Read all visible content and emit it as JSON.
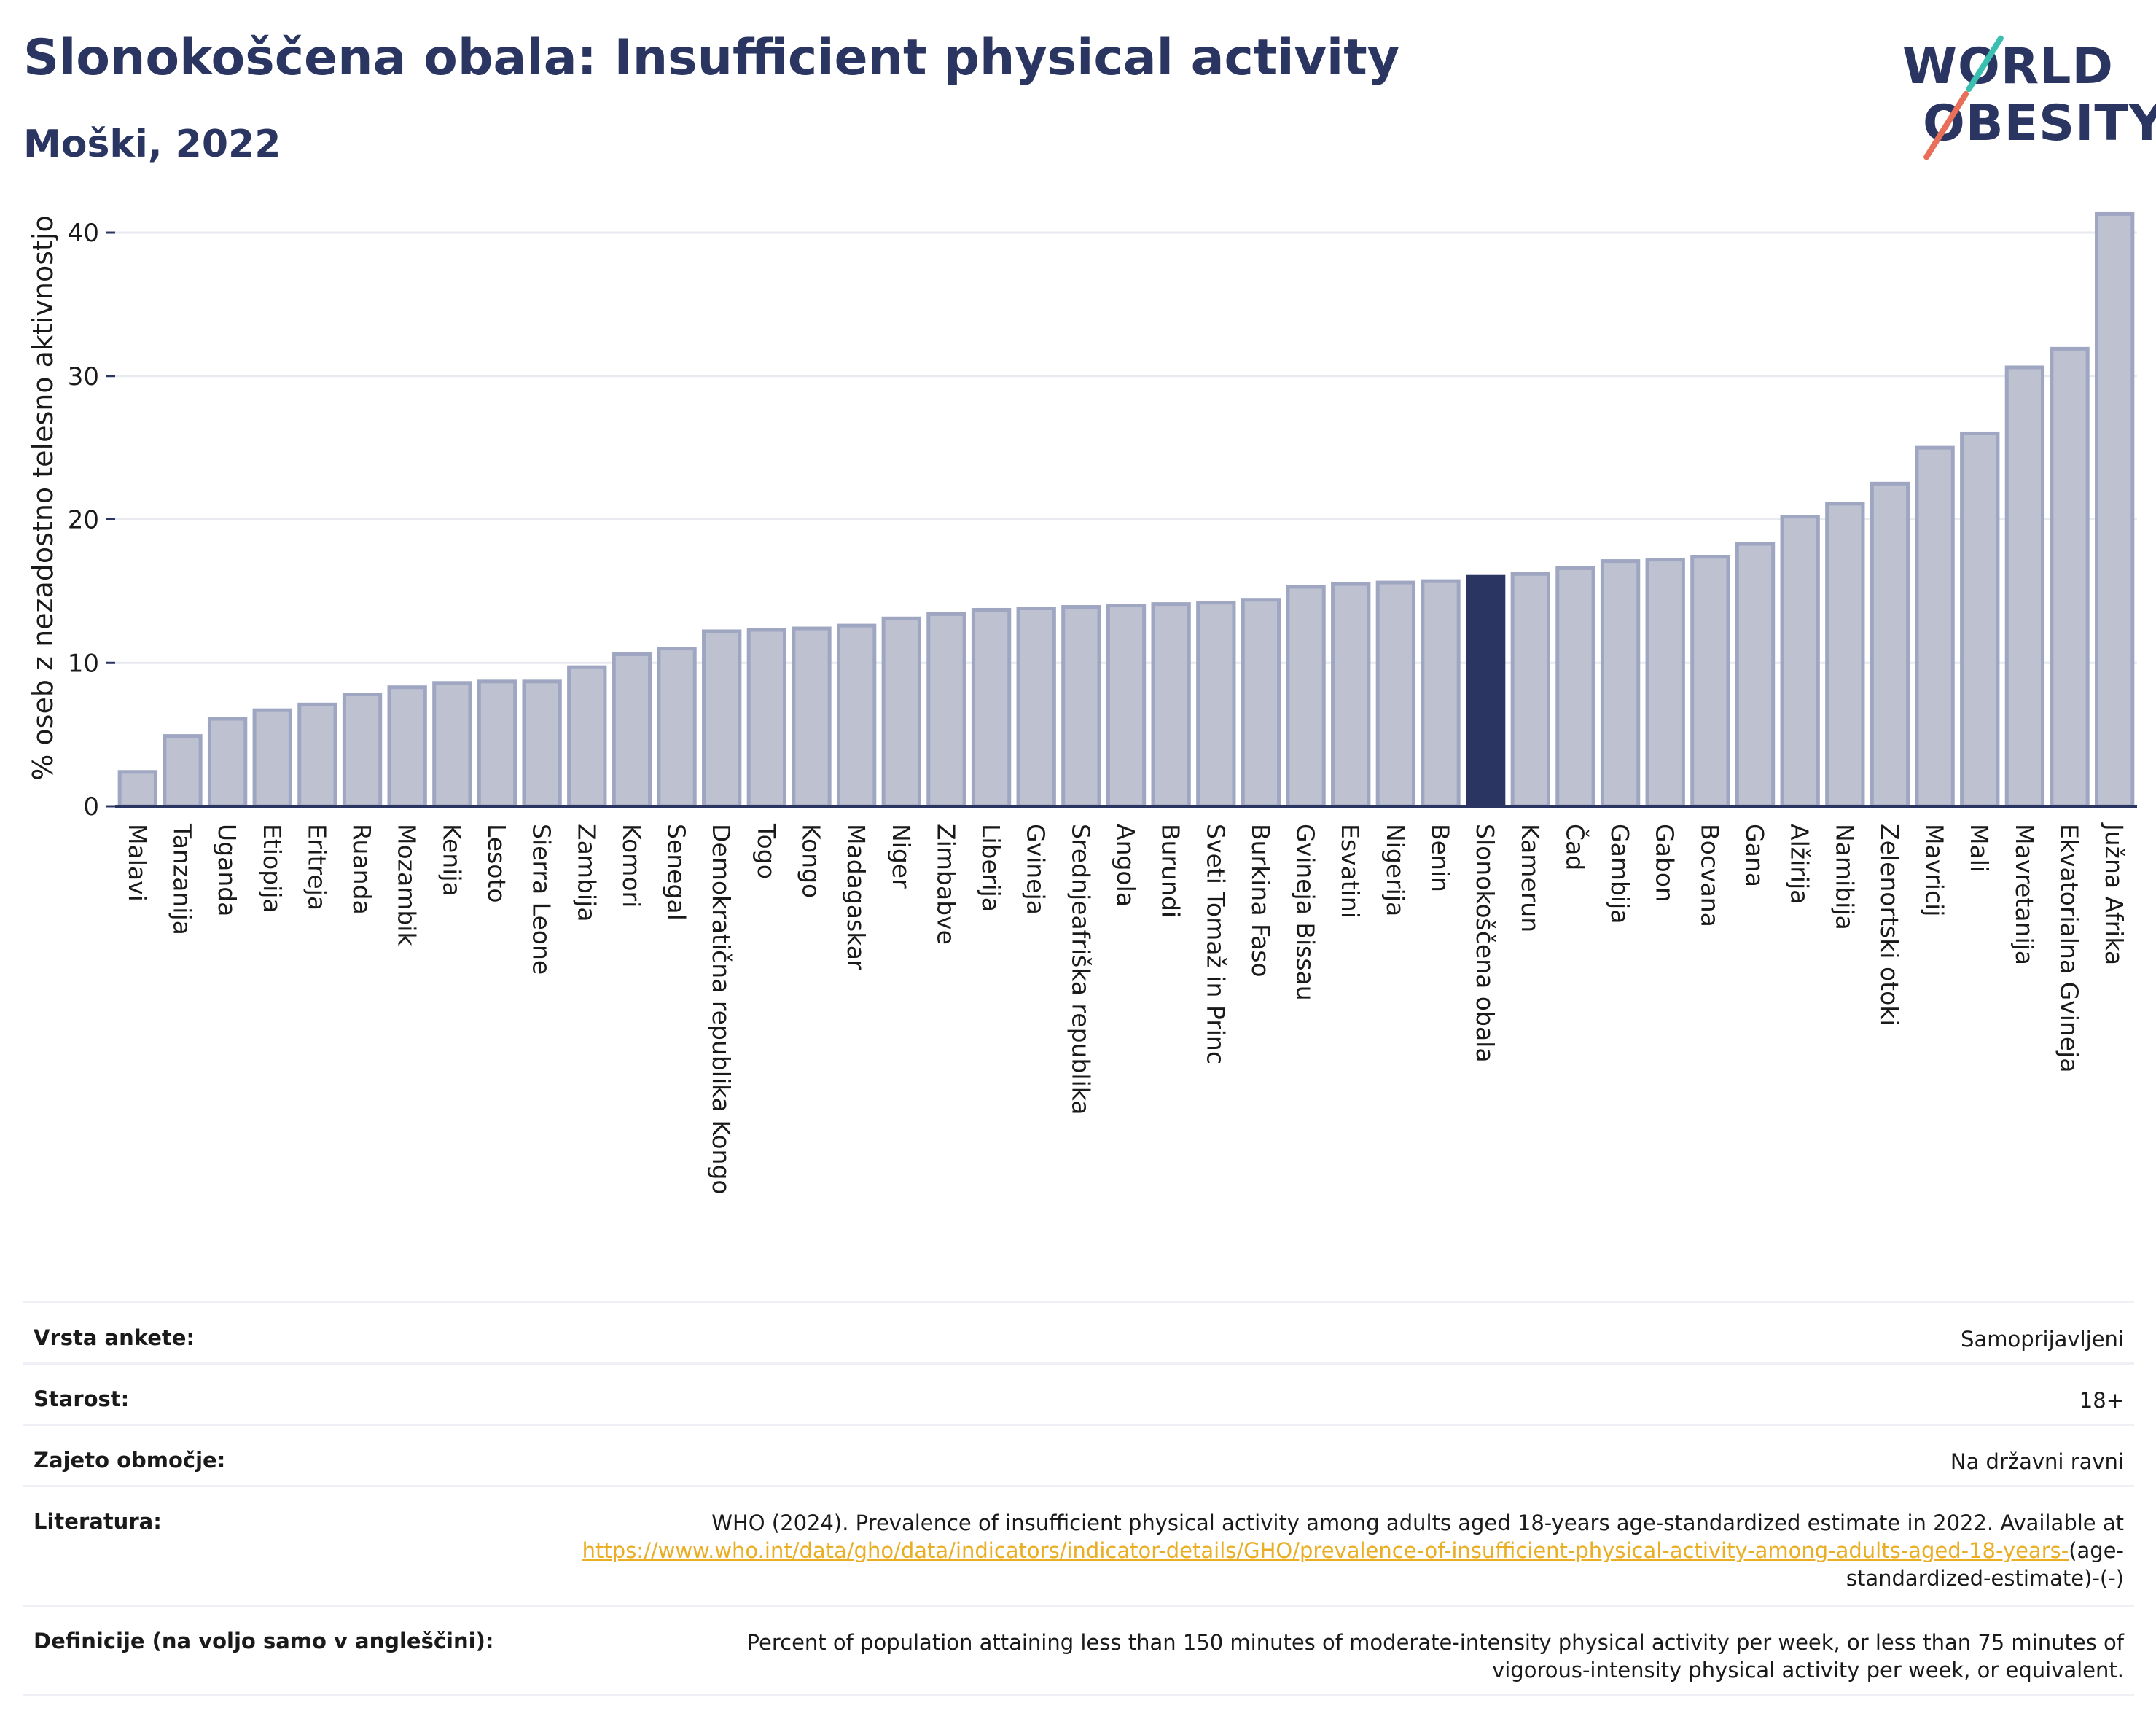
{
  "header": {
    "title": "Slonokoščena obala: Insufficient physical activity",
    "subtitle": "Moški, 2022"
  },
  "logo": {
    "line1": "WORLD",
    "line2": "OBESITY"
  },
  "colors": {
    "bar": "#bdc1d0",
    "bar_border": "#9fa6c1",
    "highlight": "#2b3561",
    "axis": "#2b3561",
    "grid": "#e8eaf0",
    "link": "#e9ae24"
  },
  "chart_data": {
    "type": "bar",
    "ylabel": "% oseb z nezadostno telesno aktivnostjo",
    "ylim": [
      0,
      43
    ],
    "yticks": [
      0,
      10,
      20,
      30,
      40
    ],
    "grid": true,
    "highlight": "Slonokoščena obala",
    "categories": [
      "Malavi",
      "Tanzanija",
      "Uganda",
      "Etiopija",
      "Eritreja",
      "Ruanda",
      "Mozambik",
      "Kenija",
      "Lesoto",
      "Sierra Leone",
      "Zambija",
      "Komori",
      "Senegal",
      "Demokratična republika Kongo",
      "Togo",
      "Kongo",
      "Madagaskar",
      "Niger",
      "Zimbabve",
      "Liberija",
      "Gvineja",
      "Srednjeafriška republika",
      "Angola",
      "Burundi",
      "Sveti Tomaž in Princ",
      "Burkina Faso",
      "Gvineja Bissau",
      "Esvatini",
      "Nigerija",
      "Benin",
      "Slonokoščena obala",
      "Kamerun",
      "Čad",
      "Gambija",
      "Gabon",
      "Bocvana",
      "Gana",
      "Alžirija",
      "Namibija",
      "Zelenortski otoki",
      "Mavricij",
      "Mali",
      "Mavretanija",
      "Ekvatorialna Gvineja",
      "Južna Afrika"
    ],
    "values": [
      2.4,
      4.9,
      6.1,
      6.7,
      7.1,
      7.8,
      8.3,
      8.6,
      8.7,
      8.7,
      9.7,
      10.6,
      11.0,
      12.2,
      12.3,
      12.4,
      12.6,
      13.1,
      13.4,
      13.7,
      13.8,
      13.9,
      14.0,
      14.1,
      14.2,
      14.4,
      15.3,
      15.5,
      15.6,
      15.7,
      16.0,
      16.2,
      16.6,
      17.1,
      17.2,
      17.4,
      18.3,
      20.2,
      21.1,
      22.5,
      25.0,
      26.0,
      30.6,
      31.9,
      41.3
    ]
  },
  "meta": {
    "rows": [
      {
        "label": "Vrsta ankete:",
        "value": "Samoprijavljeni"
      },
      {
        "label": "Starost:",
        "value": "18+"
      },
      {
        "label": "Zajeto območje:",
        "value": "Na državni ravni"
      }
    ],
    "literature": {
      "label": "Literatura:",
      "text_before": "WHO (2024). Prevalence of insufficient physical activity among adults aged 18-years age-standardized estimate in 2022. Available at",
      "link": "https://www.who.int/data/gho/data/indicators/indicator-details/GHO/prevalence-of-insufficient-physical-activity-among-adults-aged-18-years-",
      "text_after": "(age-standardized-estimate)-(-)"
    },
    "definition": {
      "label": "Definicije (na voljo samo v angleščini):",
      "value": "Percent of population attaining less than 150 minutes of moderate-intensity physical activity per week, or less than 75 minutes of vigorous-intensity physical activity per week, or equivalent."
    }
  }
}
